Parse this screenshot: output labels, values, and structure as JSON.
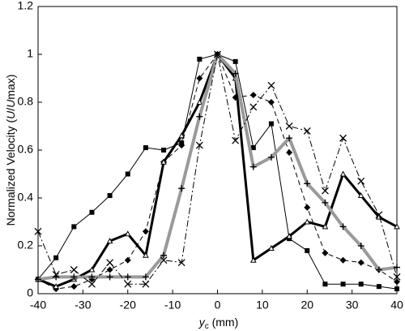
{
  "chart_data": {
    "type": "line",
    "y_label": [
      "Normalized Velocity (",
      "U",
      "/",
      "U",
      "max)"
    ],
    "x_label": [
      "y",
      "c",
      " (mm)"
    ],
    "x": [
      -40,
      -36,
      -32,
      -28,
      -24,
      -20,
      -16,
      -12,
      -8,
      -4,
      0,
      4,
      8,
      12,
      16,
      20,
      24,
      28,
      32,
      36,
      40
    ],
    "xlim": [
      -40,
      40
    ],
    "xticks": [
      -40,
      -30,
      -20,
      -10,
      0,
      10,
      20,
      30,
      40
    ],
    "ylim": [
      0,
      1.2
    ],
    "yticks": [
      0,
      0.2,
      0.4,
      0.6,
      0.8,
      1,
      1.2
    ],
    "series": [
      {
        "color": "#000000",
        "width": 1,
        "dash": "none",
        "marker": "square",
        "values": [
          0.06,
          0.15,
          0.28,
          0.34,
          0.41,
          0.5,
          0.61,
          0.6,
          0.63,
          0.98,
          1,
          0.97,
          0.61,
          0.71,
          0.23,
          0.18,
          0.04,
          0.04,
          0.04,
          0.03,
          0.02
        ]
      },
      {
        "color": "#000000",
        "width": 1,
        "dash": "6,4",
        "marker": "diamond",
        "values": [
          0.06,
          0.02,
          0.03,
          0.06,
          0.1,
          0.14,
          0.26,
          0.55,
          0.62,
          0.9,
          1,
          0.82,
          0.83,
          0.8,
          0.59,
          0.36,
          0.17,
          0.14,
          0.13,
          0.1,
          0.05
        ]
      },
      {
        "color": "#000000",
        "width": 3,
        "dash": "none",
        "marker": "triangle",
        "values": [
          0.06,
          0.03,
          0.06,
          0.1,
          0.22,
          0.25,
          0.16,
          0.55,
          0.66,
          0.8,
          1,
          0.9,
          0.14,
          0.19,
          0.24,
          0.3,
          0.28,
          0.5,
          0.41,
          0.32,
          0.28
        ]
      },
      {
        "color": "#9a9a9a",
        "width": 4,
        "dash": "none",
        "marker": "plus",
        "values": [
          0.06,
          0.07,
          0.07,
          0.07,
          0.07,
          0.07,
          0.07,
          0.16,
          0.44,
          0.74,
          1,
          0.92,
          0.53,
          0.57,
          0.65,
          0.46,
          0.38,
          0.28,
          0.2,
          0.1,
          0.11
        ]
      },
      {
        "color": "#000000",
        "width": 1,
        "dash": "8,3,2,3",
        "marker": "cross",
        "values": [
          0.26,
          0.08,
          0.1,
          0.04,
          0.13,
          0.04,
          0.04,
          0.14,
          0.13,
          0.62,
          1,
          0.64,
          0.78,
          0.87,
          0.7,
          0.68,
          0.43,
          0.65,
          0.47,
          0.33,
          0.07
        ]
      }
    ]
  }
}
